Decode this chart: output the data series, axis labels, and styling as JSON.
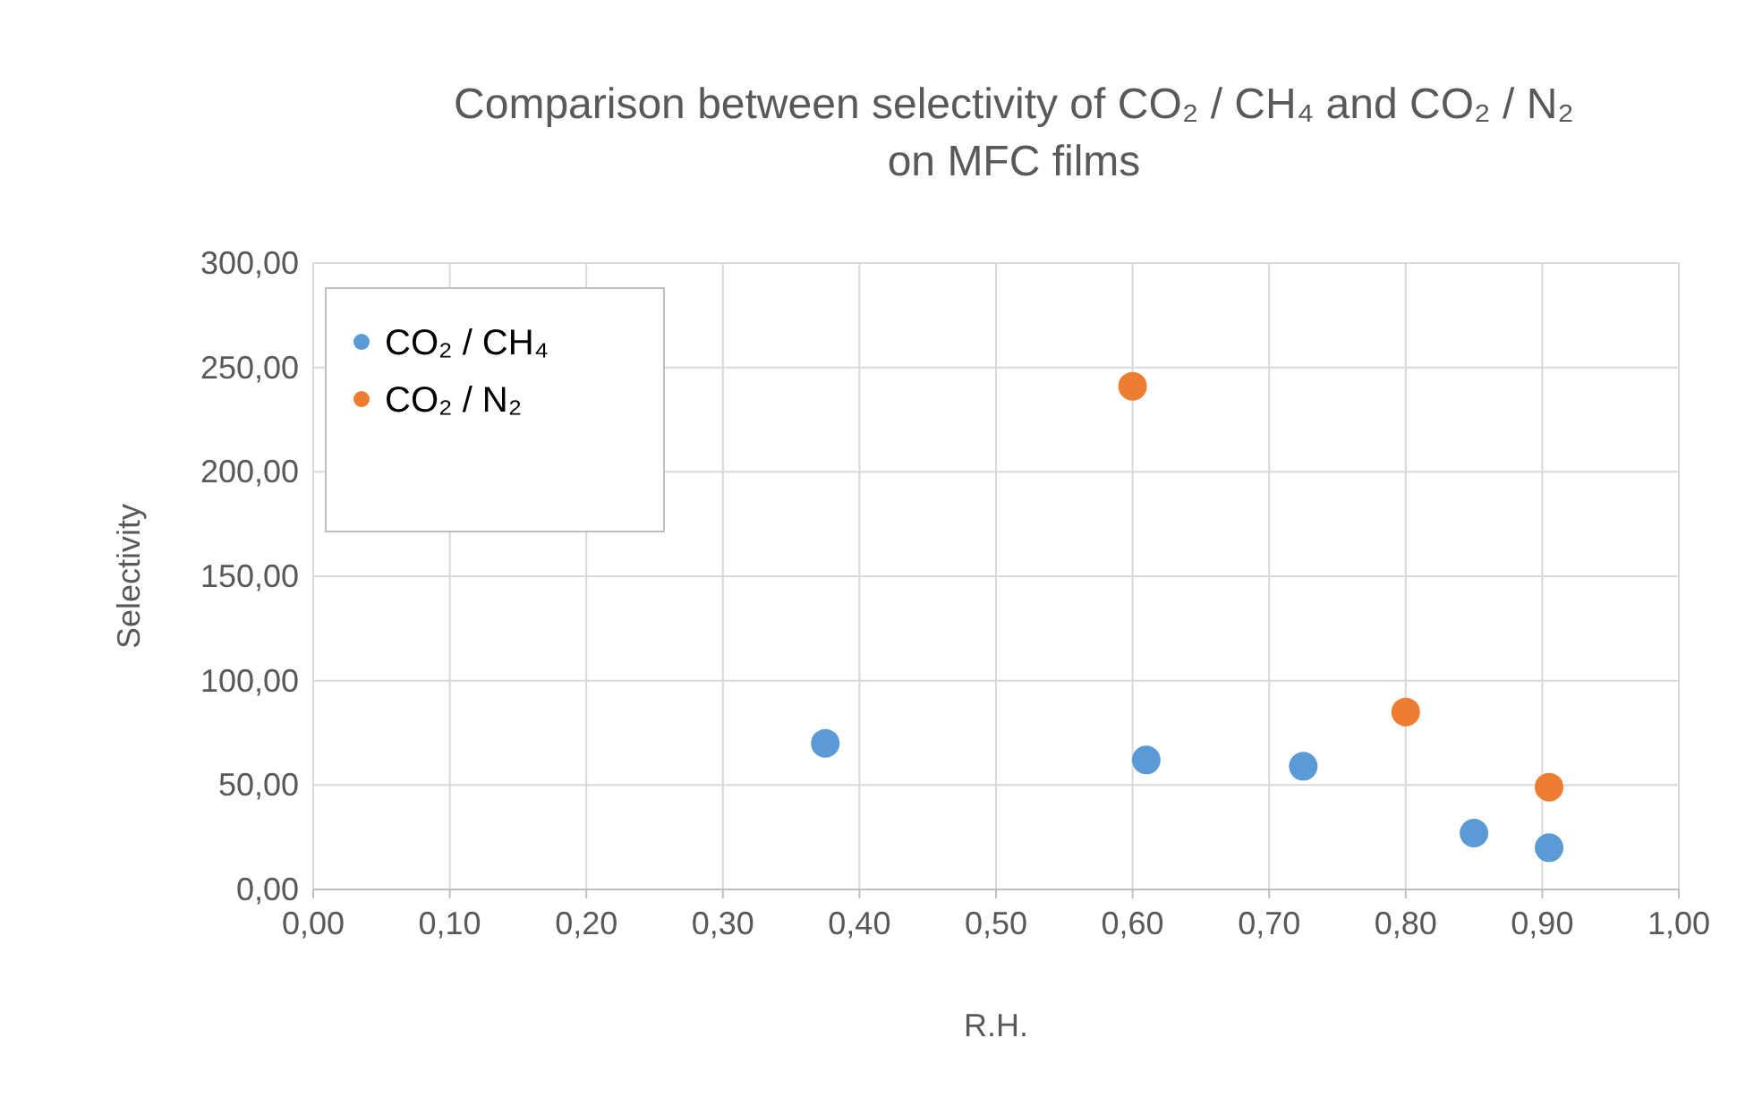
{
  "chart_data": {
    "type": "scatter",
    "title": "Comparison between selectivity of CO₂ / CH₄ and CO₂ / N₂\non MFC films",
    "xlabel": "R.H.",
    "ylabel": "Selectivity",
    "series": [
      {
        "name": "CO₂ / CH₄",
        "color": "#5b9bd5",
        "x": [
          0.375,
          0.61,
          0.725,
          0.85,
          0.905
        ],
        "values": [
          70,
          62,
          59,
          27,
          20
        ]
      },
      {
        "name": "CO₂ / N₂",
        "color": "#ed7d31",
        "x": [
          0.6,
          0.8,
          0.905
        ],
        "values": [
          241,
          85,
          49
        ]
      }
    ],
    "xlim": [
      0,
      1
    ],
    "xticks": [
      {
        "value": 0,
        "label": "0,00"
      },
      {
        "value": 0.1,
        "label": "0,10"
      },
      {
        "value": 0.2,
        "label": "0,20"
      },
      {
        "value": 0.3,
        "label": "0,30"
      },
      {
        "value": 0.4,
        "label": "0,40"
      },
      {
        "value": 0.5,
        "label": "0,50"
      },
      {
        "value": 0.6,
        "label": "0,60"
      },
      {
        "value": 0.7,
        "label": "0,70"
      },
      {
        "value": 0.8,
        "label": "0,80"
      },
      {
        "value": 0.9,
        "label": "0,90"
      },
      {
        "value": 1,
        "label": "1,00"
      }
    ],
    "ylim": [
      0,
      300
    ],
    "yticks": [
      {
        "value": 0,
        "label": "0,00"
      },
      {
        "value": 50,
        "label": "50,00"
      },
      {
        "value": 100,
        "label": "100,00"
      },
      {
        "value": 150,
        "label": "150,00"
      },
      {
        "value": 200,
        "label": "200,00"
      },
      {
        "value": 250,
        "label": "250,00"
      },
      {
        "value": 300,
        "label": "300,00"
      }
    ],
    "grid": true,
    "legend": "top left",
    "marker": "circle"
  }
}
